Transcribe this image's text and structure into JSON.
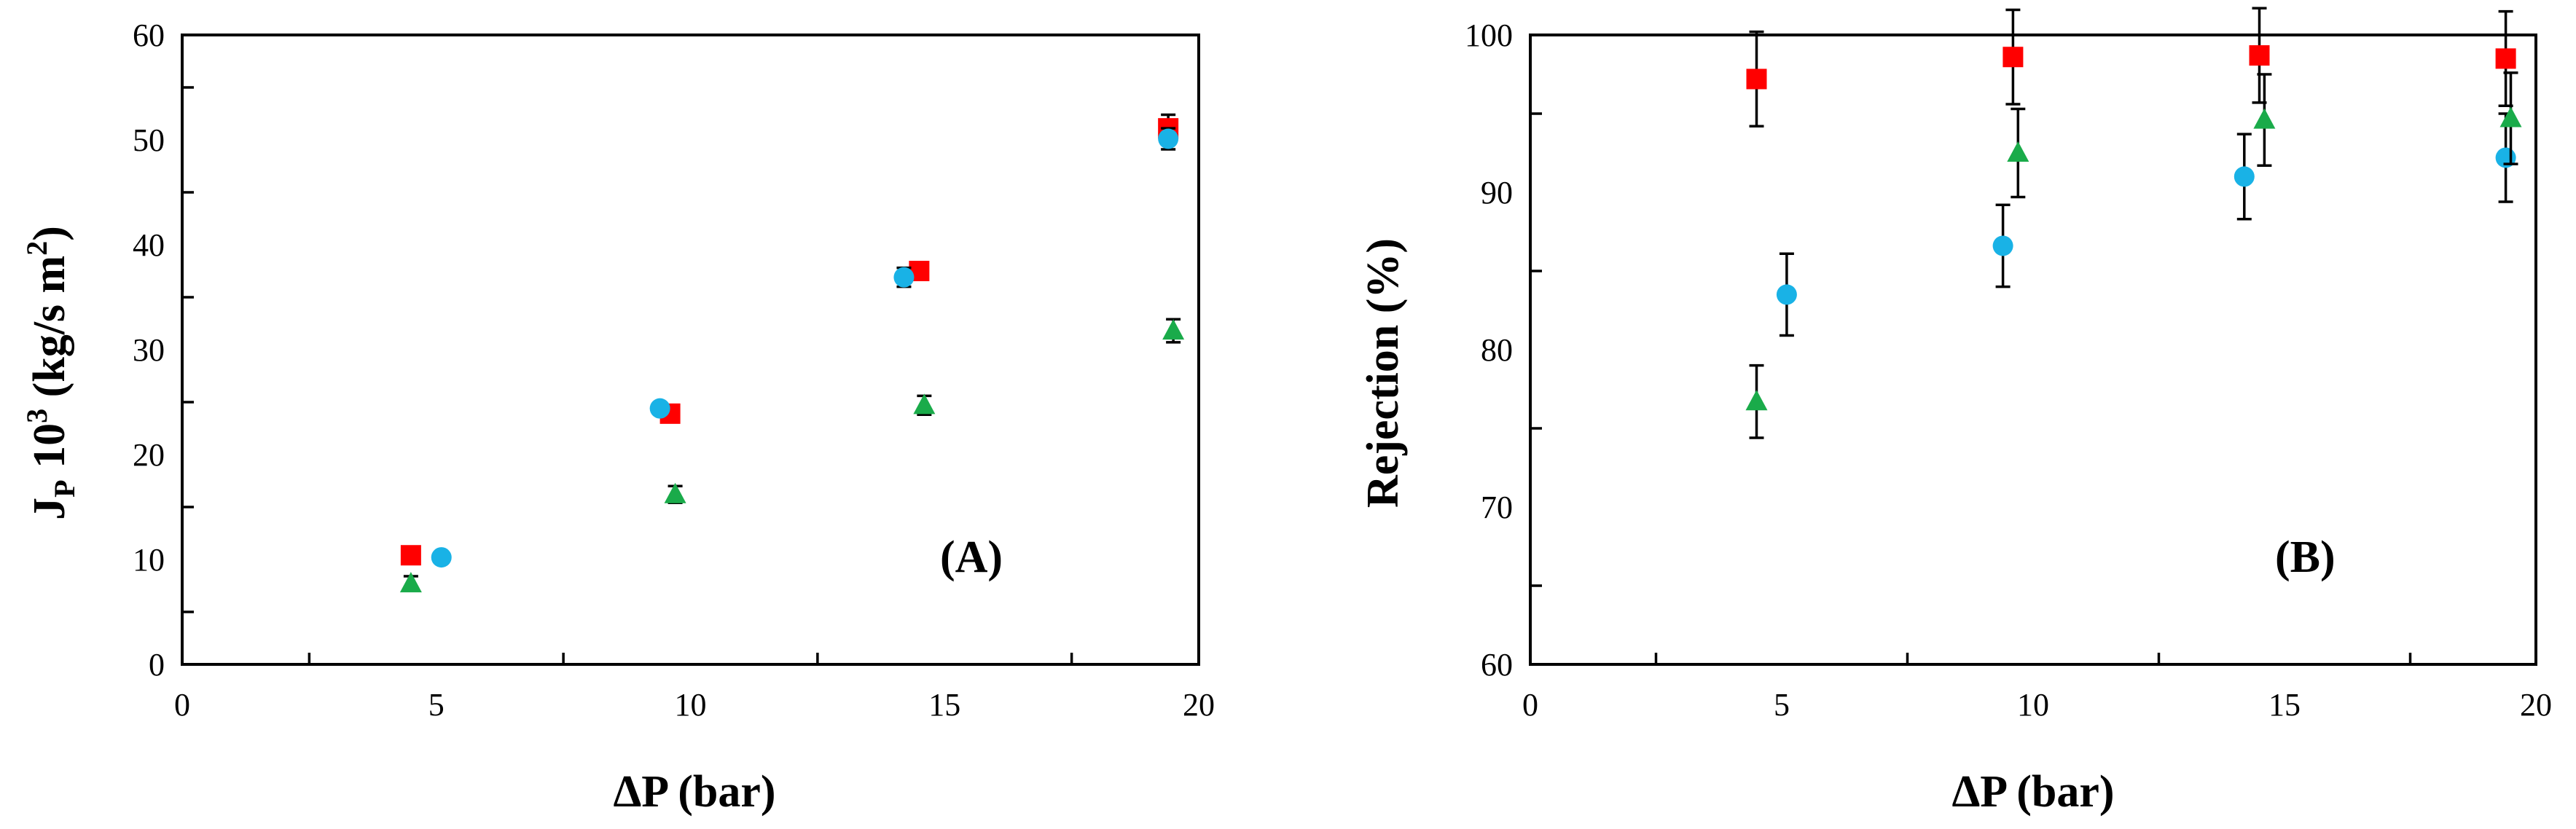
{
  "chart_data": [
    {
      "type": "scatter",
      "panel_label": "(A)",
      "xlabel": "ΔP (bar)",
      "ylabel": {
        "main": "J",
        "sub": "P",
        "mid": " 10",
        "sup": "3",
        "units": " (kg/s m",
        "units_sup": "2",
        "close": ")"
      },
      "xlim": [
        0,
        20
      ],
      "ylim": [
        0,
        60
      ],
      "x_ticks": [
        "0",
        "5",
        "10",
        "15",
        "20"
      ],
      "y_ticks": [
        "0",
        "10",
        "20",
        "30",
        "40",
        "50",
        "60"
      ],
      "series": [
        {
          "color": "#ff0000",
          "marker": "square",
          "points": [
            {
              "x": 4.5,
              "y": 10.4,
              "err": 0
            },
            {
              "x": 9.6,
              "y": 23.9,
              "err": 0
            },
            {
              "x": 14.5,
              "y": 37.5,
              "err": 0.8
            },
            {
              "x": 19.4,
              "y": 51.1,
              "err": 1.3
            }
          ]
        },
        {
          "color": "#19b2e6",
          "marker": "circle",
          "points": [
            {
              "x": 5.1,
              "y": 10.2,
              "err": 0
            },
            {
              "x": 9.4,
              "y": 24.4,
              "err": 0
            },
            {
              "x": 14.2,
              "y": 36.9,
              "err": 0.9
            },
            {
              "x": 19.4,
              "y": 50.1,
              "err": 1.0
            }
          ]
        },
        {
          "color": "#1aab4a",
          "marker": "triangle",
          "points": [
            {
              "x": 4.5,
              "y": 7.7,
              "err": 0.7
            },
            {
              "x": 9.7,
              "y": 16.2,
              "err": 0.8
            },
            {
              "x": 14.6,
              "y": 24.7,
              "err": 0.9
            },
            {
              "x": 19.5,
              "y": 31.8,
              "err": 1.1
            }
          ]
        }
      ]
    },
    {
      "type": "scatter",
      "panel_label": "(B)",
      "xlabel": "ΔP (bar)",
      "ylabel": "Rejection (%)",
      "xlim": [
        0,
        20
      ],
      "ylim": [
        60,
        100
      ],
      "x_ticks": [
        "0",
        "5",
        "10",
        "15",
        "20"
      ],
      "y_ticks": [
        "60",
        "70",
        "80",
        "90",
        "100"
      ],
      "series": [
        {
          "color": "#ff0000",
          "marker": "square",
          "points": [
            {
              "x": 4.5,
              "y": 97.2,
              "err": 3.0
            },
            {
              "x": 9.6,
              "y": 98.6,
              "err": 3.0
            },
            {
              "x": 14.5,
              "y": 98.7,
              "err": 3.0
            },
            {
              "x": 19.4,
              "y": 98.5,
              "err": 3.0
            }
          ]
        },
        {
          "color": "#19b2e6",
          "marker": "circle",
          "points": [
            {
              "x": 5.1,
              "y": 83.5,
              "err": 2.6
            },
            {
              "x": 9.4,
              "y": 86.6,
              "err": 2.6
            },
            {
              "x": 14.2,
              "y": 91.0,
              "err": 2.7
            },
            {
              "x": 19.4,
              "y": 92.2,
              "err": 2.8
            }
          ]
        },
        {
          "color": "#1aab4a",
          "marker": "triangle",
          "points": [
            {
              "x": 4.5,
              "y": 76.7,
              "err": 2.3
            },
            {
              "x": 9.7,
              "y": 92.5,
              "err": 2.8
            },
            {
              "x": 14.6,
              "y": 94.6,
              "err": 2.9
            },
            {
              "x": 19.5,
              "y": 94.7,
              "err": 2.9
            }
          ]
        }
      ]
    }
  ]
}
